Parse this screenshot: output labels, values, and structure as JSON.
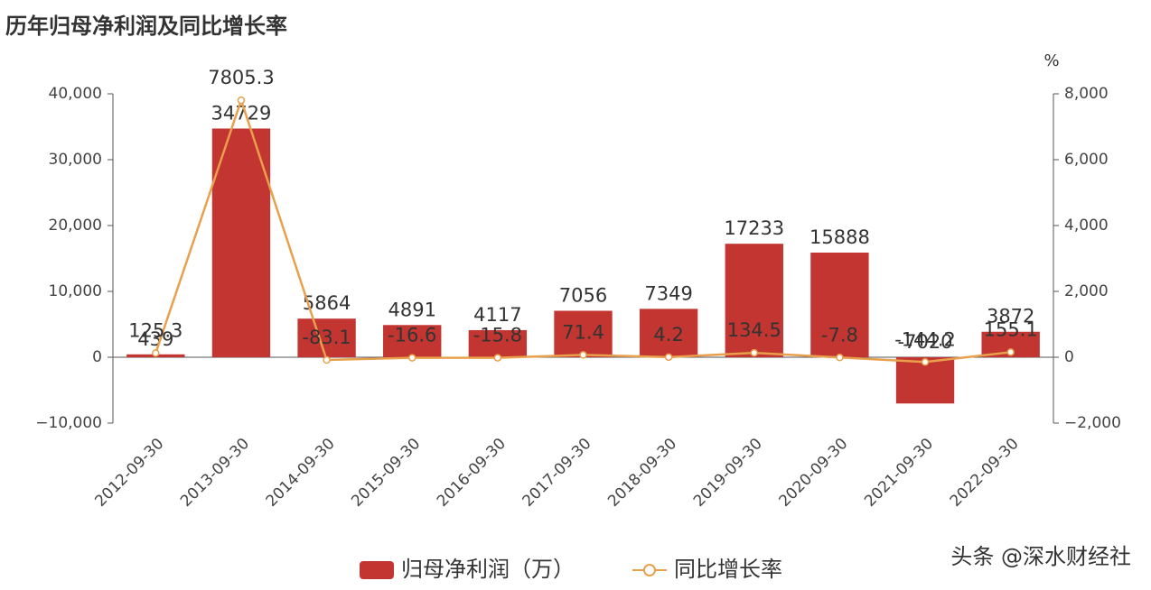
{
  "chart_data": {
    "type": "bar-line",
    "title": "历年归母净利润及同比增长率",
    "y2_label": "%",
    "watermark": "头条 @深水财经社",
    "categories": [
      "2012-09-30",
      "2013-09-30",
      "2014-09-30",
      "2015-09-30",
      "2016-09-30",
      "2017-09-30",
      "2018-09-30",
      "2019-09-30",
      "2020-09-30",
      "2021-09-30",
      "2022-09-30"
    ],
    "series": [
      {
        "name": "归母净利润（万）",
        "type": "bar",
        "color": "#c23531",
        "label_color": "#b4433c",
        "values": [
          439,
          34729,
          5864,
          4891,
          4117,
          7056,
          7349,
          17233,
          15888,
          -7020,
          3872
        ]
      },
      {
        "name": "同比增长率",
        "type": "line",
        "axis": "y2",
        "color": "#e9a04c",
        "label_color": "#f0b070",
        "values": [
          125.3,
          7805.3,
          -83.1,
          -16.6,
          -15.8,
          71.4,
          4.2,
          134.5,
          -7.8,
          -144.2,
          155.1
        ]
      }
    ],
    "ylim": [
      -10000,
      40000
    ],
    "yticks": [
      {
        "value": -10000,
        "label": "−10,000"
      },
      0,
      {
        "value": 10000,
        "label": "10,000"
      },
      {
        "value": 20000,
        "label": "20,000"
      },
      {
        "value": 30000,
        "label": "30,000"
      },
      {
        "value": 40000,
        "label": "40,000"
      }
    ],
    "y2lim": [
      -2000,
      8000
    ],
    "y2ticks": [
      {
        "value": -2000,
        "label": "−2,000"
      },
      0,
      {
        "value": 2000,
        "label": "2,000"
      },
      {
        "value": 4000,
        "label": "4,000"
      },
      {
        "value": 6000,
        "label": "6,000"
      },
      {
        "value": 8000,
        "label": "8,000"
      }
    ]
  }
}
